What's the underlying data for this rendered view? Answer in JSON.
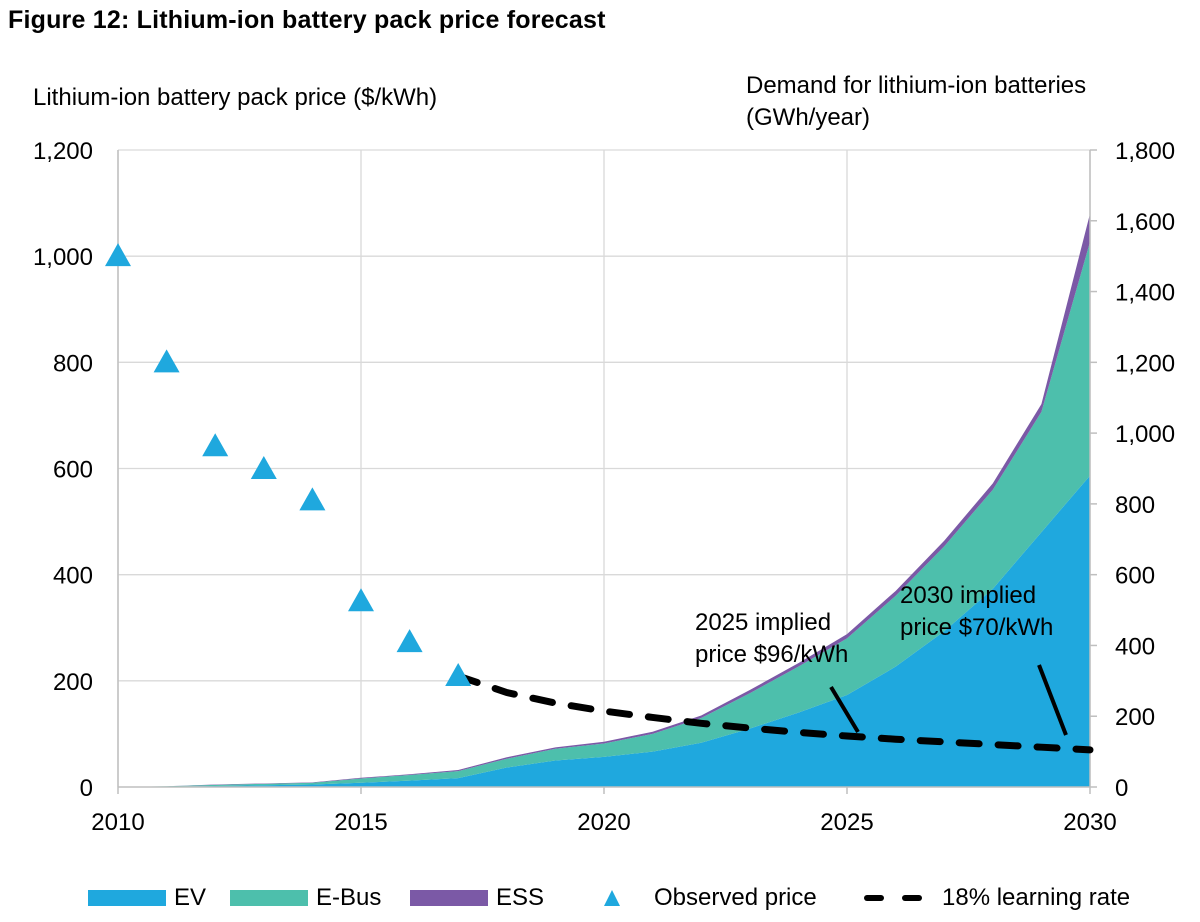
{
  "chart_data": {
    "type": "area",
    "title": "Figure 12: Lithium-ion battery pack price forecast",
    "xlabel": "",
    "ylabel_left": "Lithium-ion battery pack price ($/kWh)",
    "ylabel_right": [
      "Demand for lithium-ion batteries",
      "(GWh/year)"
    ],
    "x_range": [
      2010,
      2030
    ],
    "x_ticks": [
      "2010",
      "2015",
      "2020",
      "2025",
      "2030"
    ],
    "ylim_left": [
      0,
      1200
    ],
    "y_ticks_left": [
      "0",
      "200",
      "400",
      "600",
      "800",
      "1,000",
      "1,200"
    ],
    "ylim_right": [
      0,
      1800
    ],
    "y_ticks_right": [
      "0",
      "200",
      "400",
      "600",
      "800",
      "1,000",
      "1,200",
      "1,400",
      "1,600",
      "1,800"
    ],
    "grid": true,
    "legend_position": "bottom",
    "years": [
      2010,
      2011,
      2012,
      2013,
      2014,
      2015,
      2016,
      2017,
      2018,
      2019,
      2020,
      2021,
      2022,
      2023,
      2024,
      2025,
      2026,
      2027,
      2028,
      2029,
      2030
    ],
    "stacked_series": [
      {
        "name": "EV",
        "color": "#1fa8de",
        "axis": "right",
        "values": [
          0,
          1,
          3,
          5,
          7,
          12,
          18,
          25,
          55,
          75,
          85,
          100,
          125,
          165,
          210,
          260,
          340,
          440,
          560,
          720,
          880
        ]
      },
      {
        "name": "E-Bus",
        "color": "#4dbfac",
        "axis": "right",
        "values": [
          0,
          1,
          3,
          4,
          5,
          12,
          16,
          20,
          25,
          33,
          38,
          50,
          70,
          100,
          130,
          160,
          200,
          240,
          280,
          340,
          660
        ]
      },
      {
        "name": "ESS",
        "color": "#7b59a6",
        "axis": "right",
        "values": [
          0,
          0,
          1,
          1,
          1,
          2,
          2,
          3,
          4,
          4,
          5,
          6,
          7,
          9,
          10,
          12,
          14,
          16,
          18,
          22,
          80
        ]
      }
    ],
    "observed_price": {
      "name": "Observed price",
      "color": "#1fa8de",
      "axis": "left",
      "x": [
        2010,
        2011,
        2012,
        2013,
        2014,
        2015,
        2016,
        2017
      ],
      "y": [
        1000,
        800,
        642,
        599,
        540,
        350,
        273,
        209
      ]
    },
    "learning_rate": {
      "name": "18% learning rate",
      "color": "#000000",
      "axis": "left",
      "x": [
        2017,
        2018,
        2019,
        2020,
        2021,
        2022,
        2023,
        2024,
        2025,
        2026,
        2027,
        2028,
        2029,
        2030
      ],
      "y": [
        209,
        178,
        158,
        143,
        131,
        120,
        111,
        103,
        96,
        90,
        85,
        80,
        75,
        70
      ]
    },
    "annotations": [
      {
        "lines": [
          "2025 implied",
          "price $96/kWh"
        ],
        "x": 2025,
        "y": 96
      },
      {
        "lines": [
          "2030 implied",
          "price $70/kWh"
        ],
        "x": 2030,
        "y": 70
      }
    ],
    "legend": [
      "EV",
      "E-Bus",
      "ESS",
      "Observed price",
      "18% learning rate"
    ]
  }
}
